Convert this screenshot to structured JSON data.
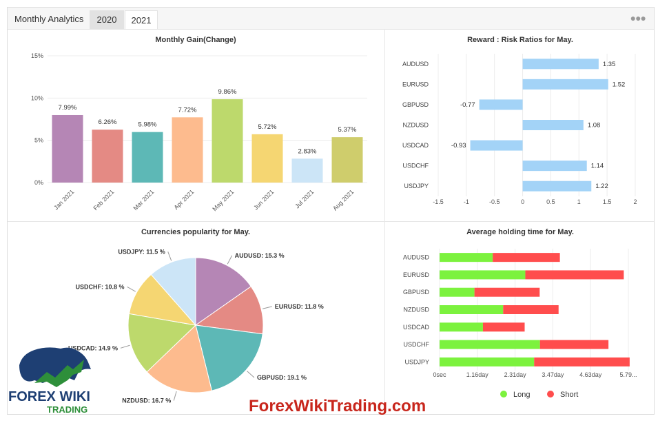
{
  "header": {
    "title": "Monthly Analytics",
    "tabs": [
      "2020",
      "2021"
    ],
    "menu_icon": "ellipsis-icon"
  },
  "watermark": "ForexWikiTrading.com",
  "logo": {
    "line1": "FOREX WIKI",
    "line2": "TRADING"
  },
  "chart_data": [
    {
      "type": "bar",
      "title": "Monthly Gain(Change)",
      "categories": [
        "Jan 2021",
        "Feb 2021",
        "Mar 2021",
        "Apr 2021",
        "May 2021",
        "Jun 2021",
        "Jul 2021",
        "Aug 2021"
      ],
      "values": [
        7.99,
        6.26,
        5.98,
        7.72,
        9.86,
        5.72,
        2.83,
        5.37
      ],
      "labels": [
        "7.99%",
        "6.26%",
        "5.98%",
        "7.72%",
        "9.86%",
        "5.72%",
        "2.83%",
        "5.37%"
      ],
      "colors": [
        "#b586b5",
        "#e48a84",
        "#5db8b6",
        "#fdbb8e",
        "#bdd96c",
        "#f5d672",
        "#cce5f7",
        "#cfcd6c"
      ],
      "yticks": [
        "0%",
        "5%",
        "10%",
        "15%"
      ],
      "ylim": [
        0,
        15
      ],
      "grid": true
    },
    {
      "type": "bar",
      "orientation": "horizontal",
      "title": "Reward : Risk Ratios for May.",
      "categories": [
        "AUDUSD",
        "EURUSD",
        "GBPUSD",
        "NZDUSD",
        "USDCAD",
        "USDCHF",
        "USDJPY"
      ],
      "values": [
        1.35,
        1.52,
        -0.77,
        1.08,
        -0.93,
        1.14,
        1.22
      ],
      "labels": [
        "1.35",
        "1.52",
        "-0.77",
        "1.08",
        "-0.93",
        "1.14",
        "1.22"
      ],
      "xticks": [
        "-1.5",
        "-1",
        "-0.5",
        "0",
        "0.5",
        "1",
        "1.5",
        "2"
      ],
      "xlim": [
        -1.5,
        2
      ],
      "color": "#a3d3f7",
      "grid": true
    },
    {
      "type": "pie",
      "title": "Currencies popularity for May.",
      "labels": [
        "AUDUSD: 15.3 %",
        "EURUSD: 11.8 %",
        "GBPUSD: 19.1 %",
        "NZDUSD: 16.7 %",
        "USDCAD: 14.9 %",
        "USDCHF: 10.8 %",
        "USDJPY: 11.5 %"
      ],
      "values": [
        15.3,
        11.8,
        19.1,
        16.7,
        14.9,
        10.8,
        11.5
      ],
      "colors": [
        "#b586b5",
        "#e48a84",
        "#5db8b6",
        "#fdbb8e",
        "#bdd96c",
        "#f5d672",
        "#cce5f7"
      ]
    },
    {
      "type": "bar",
      "orientation": "horizontal",
      "stacked": true,
      "title": "Average holding time for May.",
      "categories": [
        "AUDUSD",
        "EURUSD",
        "GBPUSD",
        "NZDUSD",
        "USDCAD",
        "USDCHF",
        "USDJPY"
      ],
      "xticks": [
        "0sec",
        "1.16day",
        "2.31day",
        "3.47day",
        "4.63day",
        "5.79..."
      ],
      "xlim_days": [
        0,
        5.79
      ],
      "series": [
        {
          "name": "Long",
          "color": "#7cf23e",
          "values": [
            1.63,
            2.63,
            1.07,
            1.95,
            1.33,
            3.08,
            2.9
          ]
        },
        {
          "name": "Short",
          "color": "#ff4d4d",
          "values": [
            2.06,
            3.02,
            2.0,
            1.7,
            1.28,
            2.1,
            2.93
          ]
        }
      ],
      "legend": "bottom"
    }
  ]
}
